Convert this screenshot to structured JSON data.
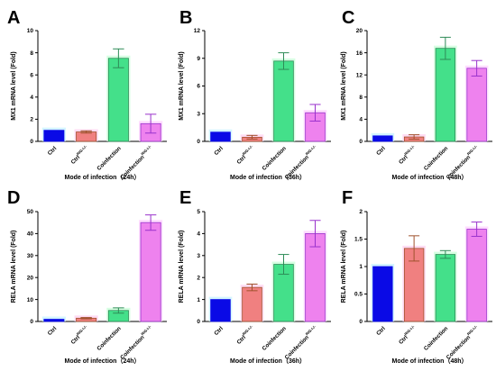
{
  "chart_data": [
    {
      "letter": "A",
      "type": "bar",
      "ylabel": "MX1 mRNA level (Fold)",
      "xlabel": "Mode of infection（24h）",
      "ylim": [
        0,
        10
      ],
      "yticks": [
        0,
        2,
        4,
        6,
        8,
        10
      ],
      "categories": [
        {
          "base": "Ctrl",
          "sup": ""
        },
        {
          "base": "Ctrl",
          "sup": "RIG-I-/-"
        },
        {
          "base": "Coinfection",
          "sup": ""
        },
        {
          "base": "Coinfection",
          "sup": "RIG-I-/-"
        }
      ],
      "values": [
        1.0,
        0.85,
        7.5,
        1.6
      ],
      "errors": [
        0,
        0.1,
        0.85,
        0.85
      ]
    },
    {
      "letter": "B",
      "type": "bar",
      "ylabel": "MX1 mRNA level (Fold)",
      "xlabel": "Mode of infection（36h）",
      "ylim": [
        0,
        12
      ],
      "yticks": [
        0,
        3,
        6,
        9,
        12
      ],
      "categories": [
        {
          "base": "Ctrl",
          "sup": ""
        },
        {
          "base": "Ctrl",
          "sup": "RIG-I-/-"
        },
        {
          "base": "Coinfection",
          "sup": ""
        },
        {
          "base": "Coinfection",
          "sup": "RIG-I-/-"
        }
      ],
      "values": [
        1.0,
        0.45,
        8.7,
        3.1
      ],
      "errors": [
        0,
        0.2,
        0.9,
        0.9
      ]
    },
    {
      "letter": "C",
      "type": "bar",
      "ylabel": "MX1 mRNA level (Fold)",
      "xlabel": "Mode of infection（48h）",
      "ylim": [
        0,
        20
      ],
      "yticks": [
        0,
        4,
        8,
        12,
        16,
        20
      ],
      "categories": [
        {
          "base": "Ctrl",
          "sup": ""
        },
        {
          "base": "Ctrl",
          "sup": "RIG-I-/-"
        },
        {
          "base": "Coinfection",
          "sup": ""
        },
        {
          "base": "Coinfection",
          "sup": "RIG-I-/-"
        }
      ],
      "values": [
        1.0,
        0.8,
        16.8,
        13.2
      ],
      "errors": [
        0,
        0.4,
        2.0,
        1.4
      ]
    },
    {
      "letter": "D",
      "type": "bar",
      "ylabel": "RELA mRNA level (Fold)",
      "xlabel": "Mode of infection（24h）",
      "ylim": [
        0,
        50
      ],
      "yticks": [
        0,
        10,
        20,
        30,
        40,
        50
      ],
      "categories": [
        {
          "base": "Ctrl",
          "sup": ""
        },
        {
          "base": "Ctrl",
          "sup": "RIG-I-/-"
        },
        {
          "base": "Coinfection",
          "sup": ""
        },
        {
          "base": "Coinfection",
          "sup": "RIG-I-/-"
        }
      ],
      "values": [
        1.0,
        1.5,
        5.0,
        45.0
      ],
      "errors": [
        0,
        0.3,
        1.2,
        3.5
      ]
    },
    {
      "letter": "E",
      "type": "bar",
      "ylabel": "RELA mRNA level (Fold)",
      "xlabel": "Mode of infection（36h）",
      "ylim": [
        0,
        5
      ],
      "yticks": [
        0,
        1,
        2,
        3,
        4,
        5
      ],
      "categories": [
        {
          "base": "Ctrl",
          "sup": ""
        },
        {
          "base": "Ctrl",
          "sup": "RIG-I-/-"
        },
        {
          "base": "Coinfection",
          "sup": ""
        },
        {
          "base": "Coinfection",
          "sup": "RIG-I-/-"
        }
      ],
      "values": [
        1.0,
        1.55,
        2.6,
        4.0
      ],
      "errors": [
        0,
        0.15,
        0.45,
        0.6
      ]
    },
    {
      "letter": "F",
      "type": "bar",
      "ylabel": "RELA mRNA level (Fold)",
      "xlabel": "Mode of infection（48h）",
      "ylim": [
        0,
        2
      ],
      "yticks": [
        0.0,
        0.5,
        1.0,
        1.5,
        2.0
      ],
      "categories": [
        {
          "base": "Ctrl",
          "sup": ""
        },
        {
          "base": "Ctrl",
          "sup": "RIG-I-/-"
        },
        {
          "base": "Coinfection",
          "sup": ""
        },
        {
          "base": "Coinfection",
          "sup": "RIG-I-/-"
        }
      ],
      "values": [
        1.0,
        1.33,
        1.22,
        1.68
      ],
      "errors": [
        0,
        0.23,
        0.07,
        0.13
      ]
    }
  ],
  "colors": {
    "bar_fill": [
      "#0a0ae6",
      "#f08080",
      "#44e08a",
      "#ee82ee"
    ],
    "bar_stroke": [
      "#0a0ae6",
      "#a0522d",
      "#2e8b57",
      "#9932cc"
    ],
    "error_bar": [
      "#0a0ae6",
      "#a0522d",
      "#2e8b57",
      "#9932cc"
    ],
    "glow": [
      "#c6f2ff",
      "#ffd0f0",
      "#c8ffd8",
      "#ffd0ff"
    ]
  }
}
